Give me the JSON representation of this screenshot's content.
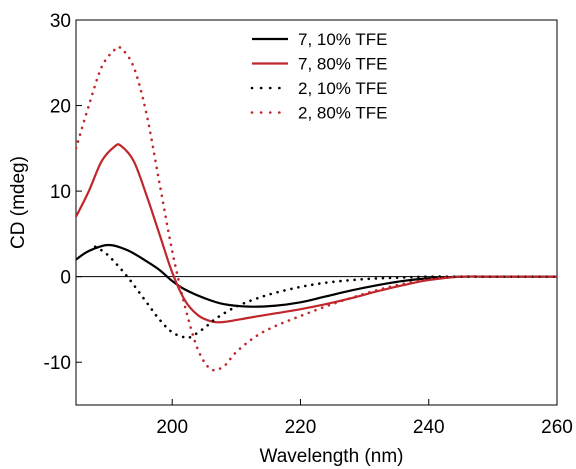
{
  "chart_data": {
    "type": "line",
    "title": "",
    "xlabel": "Wavelength (nm)",
    "ylabel": "CD (mdeg)",
    "xlim": [
      185,
      260
    ],
    "ylim": [
      -15,
      30
    ],
    "x_ticks": [
      200,
      220,
      240,
      260
    ],
    "y_ticks": [
      -10,
      0,
      10,
      20,
      30
    ],
    "x_tick_labels": [
      "200",
      "220",
      "240",
      "260"
    ],
    "y_tick_labels": [
      "-10",
      "0",
      "10",
      "20",
      "30"
    ],
    "zero_line": true,
    "grid": false,
    "legend_position": "top-center",
    "series": [
      {
        "name": "7, 10% TFE",
        "color": "#000000",
        "style": "solid",
        "x": [
          185,
          187,
          190,
          193,
          196,
          198,
          200,
          202,
          205,
          208,
          212,
          216,
          220,
          224,
          228,
          232,
          236,
          240,
          245,
          250,
          255,
          260
        ],
        "y": [
          2.0,
          3.0,
          3.7,
          3.1,
          1.8,
          0.8,
          -0.5,
          -1.5,
          -2.5,
          -3.2,
          -3.5,
          -3.4,
          -3.0,
          -2.3,
          -1.6,
          -1.0,
          -0.5,
          -0.2,
          0.0,
          0.0,
          0.0,
          0.0
        ]
      },
      {
        "name": "7, 80% TFE",
        "color": "#c0272d",
        "style": "solid",
        "x": [
          185,
          187,
          189,
          191,
          192,
          194,
          196,
          198,
          200,
          202,
          204,
          206,
          208,
          212,
          216,
          220,
          224,
          228,
          232,
          236,
          240,
          245,
          250,
          255,
          260
        ],
        "y": [
          7.0,
          10.0,
          13.5,
          15.2,
          15.3,
          13.5,
          9.5,
          5.0,
          0.5,
          -2.8,
          -4.5,
          -5.2,
          -5.3,
          -4.8,
          -4.3,
          -3.8,
          -3.2,
          -2.5,
          -1.7,
          -1.0,
          -0.4,
          0.0,
          0.0,
          0.0,
          0.0
        ]
      },
      {
        "name": "2, 10% TFE",
        "color": "#000000",
        "style": "dotted",
        "x": [
          188,
          190,
          193,
          196,
          198,
          200,
          202,
          203,
          205,
          207,
          210,
          213,
          216,
          220,
          224,
          228,
          232,
          236,
          240,
          245,
          250,
          255,
          260
        ],
        "y": [
          3.5,
          2.5,
          0.0,
          -3.0,
          -5.0,
          -6.5,
          -7.1,
          -7.0,
          -6.0,
          -4.8,
          -3.5,
          -2.6,
          -1.9,
          -1.2,
          -0.7,
          -0.4,
          -0.2,
          -0.1,
          0.0,
          0.0,
          0.0,
          0.0,
          0.0
        ]
      },
      {
        "name": "2, 80% TFE",
        "color": "#c0272d",
        "style": "dotted",
        "x": [
          185,
          187,
          189,
          191,
          192,
          194,
          196,
          198,
          200,
          202,
          204,
          206,
          208,
          210,
          213,
          216,
          220,
          225,
          230,
          235,
          240,
          245,
          250,
          255,
          260
        ],
        "y": [
          15.0,
          20.0,
          24.5,
          26.5,
          26.7,
          24.5,
          19.0,
          11.0,
          3.0,
          -3.5,
          -8.5,
          -10.8,
          -10.5,
          -8.8,
          -7.0,
          -5.8,
          -4.6,
          -3.2,
          -2.0,
          -1.0,
          -0.3,
          0.0,
          0.0,
          0.0,
          0.0
        ]
      }
    ]
  }
}
